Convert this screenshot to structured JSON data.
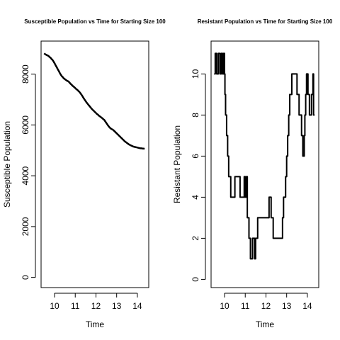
{
  "chart_data": [
    {
      "type": "line",
      "title": "Susceptible Population vs Time for Starting Size 100",
      "xlabel": "Time",
      "ylabel": "Susceptible Population",
      "xlim": [
        9.35,
        14.55
      ],
      "ylim": [
        -400,
        9300
      ],
      "xticks": [
        10,
        11,
        12,
        13,
        14
      ],
      "yticks": [
        0,
        2000,
        4000,
        6000,
        8000
      ],
      "grid": false,
      "series": [
        {
          "x": [
            9.5,
            9.55,
            9.6,
            9.65,
            9.7,
            9.75,
            9.8,
            9.85,
            9.9,
            9.95,
            10.0,
            10.05,
            10.1,
            10.15,
            10.2,
            10.25,
            10.3,
            10.35,
            10.4,
            10.45,
            10.5,
            10.55,
            10.6,
            10.65,
            10.7,
            10.75,
            10.8,
            10.85,
            10.9,
            10.95,
            11.0,
            11.05,
            11.1,
            11.15,
            11.2,
            11.25,
            11.3,
            11.35,
            11.4,
            11.45,
            11.5,
            11.55,
            11.6,
            11.65,
            11.7,
            11.75,
            11.8,
            11.85,
            11.9,
            11.95,
            12.0,
            12.05,
            12.1,
            12.15,
            12.2,
            12.25,
            12.3,
            12.35,
            12.4,
            12.45,
            12.5,
            12.55,
            12.6,
            12.65,
            12.7,
            12.75,
            12.8,
            12.85,
            12.9,
            12.95,
            13.0,
            13.05,
            13.1,
            13.15,
            13.2,
            13.25,
            13.3,
            13.35,
            13.4,
            13.45,
            13.5,
            13.55,
            13.6,
            13.65,
            13.7,
            13.75,
            13.8,
            13.85,
            13.9,
            13.95,
            14.0,
            14.05,
            14.1,
            14.15,
            14.2,
            14.25,
            14.3,
            14.35
          ],
          "values": [
            8820,
            8780,
            8760,
            8740,
            8720,
            8680,
            8650,
            8600,
            8560,
            8500,
            8430,
            8350,
            8280,
            8200,
            8130,
            8050,
            7980,
            7920,
            7880,
            7830,
            7800,
            7770,
            7740,
            7720,
            7690,
            7640,
            7600,
            7560,
            7520,
            7490,
            7450,
            7410,
            7380,
            7340,
            7300,
            7250,
            7190,
            7130,
            7060,
            7000,
            6940,
            6880,
            6830,
            6780,
            6730,
            6680,
            6630,
            6590,
            6550,
            6510,
            6470,
            6430,
            6400,
            6360,
            6330,
            6300,
            6270,
            6230,
            6200,
            6140,
            6080,
            6020,
            5960,
            5910,
            5870,
            5840,
            5820,
            5790,
            5750,
            5710,
            5670,
            5630,
            5590,
            5550,
            5510,
            5470,
            5430,
            5390,
            5350,
            5320,
            5290,
            5260,
            5230,
            5210,
            5190,
            5170,
            5150,
            5140,
            5130,
            5120,
            5110,
            5100,
            5090,
            5080,
            5080,
            5070,
            5070,
            5060
          ]
        }
      ]
    },
    {
      "type": "line",
      "title": "Resistant Population vs Time for Starting Size 100",
      "xlabel": "Time",
      "ylabel": "Resistant Population",
      "xlim": [
        9.35,
        14.55
      ],
      "ylim": [
        -0.4,
        11.6
      ],
      "xticks": [
        10,
        11,
        12,
        13,
        14
      ],
      "yticks": [
        0,
        2,
        4,
        6,
        8,
        10
      ],
      "grid": false,
      "series": [
        {
          "x": [
            9.5,
            9.55,
            9.55,
            9.62,
            9.62,
            9.7,
            9.7,
            9.78,
            9.78,
            9.84,
            9.84,
            9.9,
            9.9,
            9.95,
            9.95,
            10.0,
            10.0,
            10.02,
            10.02,
            10.05,
            10.05,
            10.1,
            10.1,
            10.15,
            10.15,
            10.2,
            10.2,
            10.3,
            10.3,
            10.5,
            10.5,
            10.75,
            10.75,
            10.95,
            10.95,
            11.0,
            11.0,
            11.05,
            11.05,
            11.1,
            11.1,
            11.18,
            11.18,
            11.25,
            11.25,
            11.35,
            11.35,
            11.45,
            11.45,
            11.5,
            11.5,
            11.55,
            11.55,
            11.6,
            11.6,
            12.15,
            12.15,
            12.25,
            12.25,
            12.35,
            12.35,
            12.8,
            12.8,
            12.85,
            12.85,
            12.95,
            12.95,
            13.0,
            13.0,
            13.05,
            13.05,
            13.1,
            13.1,
            13.15,
            13.15,
            13.25,
            13.25,
            13.5,
            13.5,
            13.6,
            13.6,
            13.72,
            13.72,
            13.78,
            13.78,
            13.85,
            13.85,
            13.88,
            13.88,
            13.92,
            13.92,
            13.96,
            13.96,
            14.03,
            14.03,
            14.1,
            14.1,
            14.2,
            14.2,
            14.27,
            14.27,
            14.3,
            14.3,
            14.35
          ],
          "values": [
            10,
            10,
            11,
            11,
            10,
            10,
            11,
            11,
            10,
            10,
            11,
            11,
            10,
            10,
            11,
            11,
            10,
            10,
            9,
            9,
            8,
            8,
            7,
            7,
            6,
            6,
            5,
            5,
            4,
            4,
            5,
            5,
            4,
            4,
            5,
            5,
            4,
            4,
            5,
            5,
            3,
            3,
            2,
            2,
            1,
            1,
            2,
            2,
            1,
            1,
            2,
            2,
            2,
            2,
            3,
            3,
            4,
            4,
            3,
            3,
            2,
            2,
            3,
            3,
            4,
            4,
            5,
            5,
            6,
            6,
            7,
            7,
            8,
            8,
            9,
            9,
            10,
            10,
            9,
            9,
            8,
            8,
            7,
            7,
            6,
            6,
            7,
            7,
            8,
            8,
            9,
            9,
            10,
            10,
            9,
            9,
            8,
            8,
            9,
            9,
            10,
            10,
            8,
            8
          ]
        }
      ]
    }
  ]
}
